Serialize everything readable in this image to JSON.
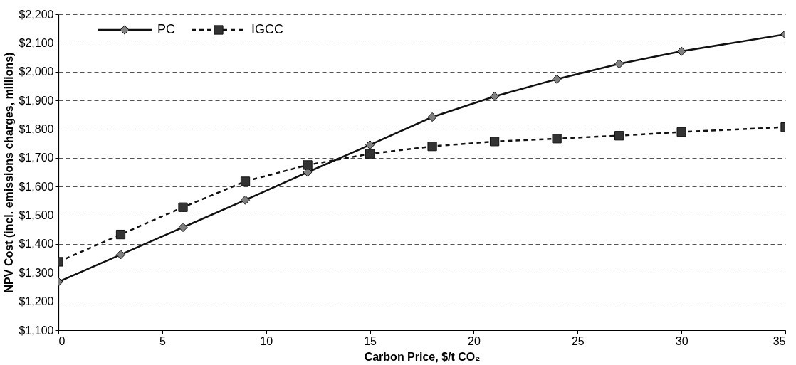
{
  "chart_data": {
    "type": "line",
    "xlabel": "Carbon Price, $/t CO₂",
    "ylabel": "NPV Cost (incl. emissions charges, millions)",
    "x": [
      0,
      3,
      6,
      9,
      12,
      15,
      18,
      21,
      24,
      27,
      30,
      35
    ],
    "series": [
      {
        "name": "PC",
        "color": "#808080",
        "marker": "diamond",
        "line_style": "solid",
        "values": [
          1268,
          1363,
          1458,
          1553,
          1650,
          1745,
          1842,
          1914,
          1974,
          2027,
          2071,
          2130
        ]
      },
      {
        "name": "IGCC",
        "color": "#333333",
        "marker": "square",
        "line_style": "dashed",
        "values": [
          1338,
          1433,
          1528,
          1618,
          1675,
          1714,
          1740,
          1757,
          1767,
          1777,
          1790,
          1807
        ]
      }
    ],
    "xlim": [
      0,
      35
    ],
    "xticks": [
      0,
      5,
      10,
      15,
      20,
      25,
      30,
      35
    ],
    "ylim": [
      1100,
      2200
    ],
    "yticks": [
      {
        "value": 1100,
        "label": "$1,100"
      },
      {
        "value": 1200,
        "label": "$1,200"
      },
      {
        "value": 1300,
        "label": "$1,300"
      },
      {
        "value": 1400,
        "label": "$1,400"
      },
      {
        "value": 1500,
        "label": "$1,500"
      },
      {
        "value": 1600,
        "label": "$1,600"
      },
      {
        "value": 1700,
        "label": "$1,700"
      },
      {
        "value": 1800,
        "label": "$1,800"
      },
      {
        "value": 1900,
        "label": "$1,900"
      },
      {
        "value": 2000,
        "label": "$2,000"
      },
      {
        "value": 2100,
        "label": "$2,100"
      },
      {
        "value": 2200,
        "label": "$2,200"
      }
    ],
    "grid": "y",
    "legend": "top left"
  }
}
